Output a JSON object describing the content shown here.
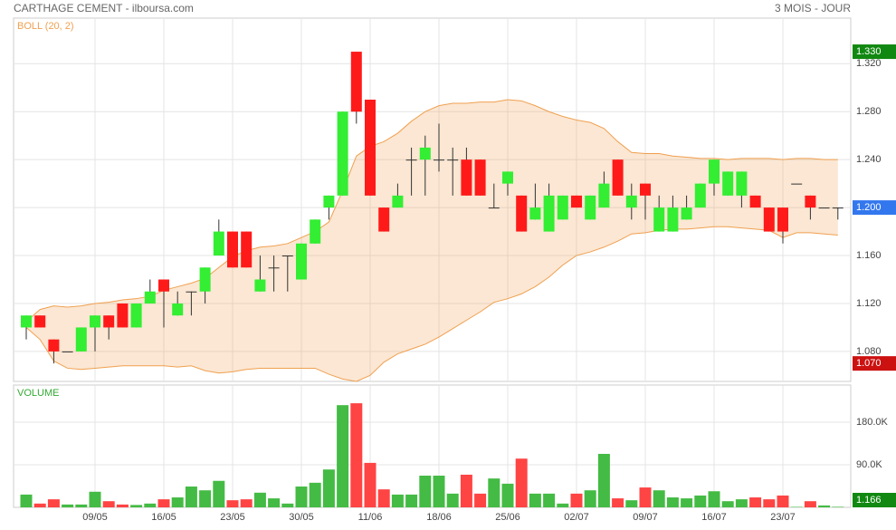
{
  "chart_data": [
    {
      "type": "candlestick",
      "title": "CARTHAGE CEMENT - ilboursa.com",
      "subtitle": "3 MOIS - JOUR",
      "indicator": "BOLL (20, 2)",
      "categories": [
        null,
        null,
        null,
        null,
        null,
        "09/05",
        null,
        null,
        null,
        null,
        "16/05",
        null,
        null,
        null,
        null,
        "23/05",
        null,
        null,
        null,
        null,
        "30/05",
        null,
        null,
        null,
        null,
        "11/06",
        null,
        null,
        null,
        null,
        "18/06",
        null,
        null,
        null,
        null,
        "25/06",
        null,
        null,
        null,
        null,
        "02/07",
        null,
        null,
        null,
        null,
        "09/07",
        null,
        null,
        null,
        null,
        "16/07",
        null,
        null,
        null,
        null,
        "23/07",
        null,
        null,
        null,
        null
      ],
      "open": [
        1.1,
        1.11,
        1.09,
        1.08,
        1.08,
        1.1,
        1.11,
        1.12,
        1.1,
        1.12,
        1.14,
        1.11,
        1.13,
        1.13,
        1.16,
        1.18,
        1.18,
        1.13,
        1.15,
        1.16,
        1.14,
        1.17,
        1.2,
        1.21,
        1.33,
        1.29,
        1.2,
        1.2,
        1.24,
        1.24,
        1.24,
        1.24,
        1.24,
        1.24,
        1.2,
        1.22,
        1.21,
        1.19,
        1.18,
        1.19,
        1.21,
        1.19,
        1.2,
        1.24,
        1.2,
        1.22,
        1.18,
        1.18,
        1.19,
        1.2,
        1.22,
        1.21,
        1.21,
        1.21,
        1.2,
        1.2,
        1.22,
        1.21,
        1.2,
        1.2
      ],
      "high": [
        1.11,
        1.11,
        1.09,
        1.08,
        1.1,
        1.11,
        1.11,
        1.12,
        1.12,
        1.14,
        1.14,
        1.13,
        1.13,
        1.15,
        1.19,
        1.18,
        1.18,
        1.16,
        1.16,
        1.16,
        1.17,
        1.19,
        1.21,
        1.28,
        1.33,
        1.29,
        1.2,
        1.22,
        1.25,
        1.26,
        1.27,
        1.25,
        1.25,
        1.24,
        1.22,
        1.23,
        1.21,
        1.22,
        1.22,
        1.21,
        1.21,
        1.21,
        1.23,
        1.24,
        1.22,
        1.22,
        1.21,
        1.21,
        1.21,
        1.22,
        1.24,
        1.23,
        1.23,
        1.21,
        1.2,
        1.2,
        1.22,
        1.21,
        1.2,
        1.2
      ],
      "low": [
        1.09,
        1.1,
        1.07,
        1.08,
        1.08,
        1.08,
        1.09,
        1.1,
        1.1,
        1.12,
        1.1,
        1.11,
        1.11,
        1.12,
        1.16,
        1.15,
        1.15,
        1.13,
        1.13,
        1.13,
        1.14,
        1.17,
        1.19,
        1.21,
        1.27,
        1.21,
        1.18,
        1.2,
        1.21,
        1.21,
        1.23,
        1.21,
        1.21,
        1.21,
        1.2,
        1.21,
        1.18,
        1.19,
        1.18,
        1.19,
        1.2,
        1.19,
        1.2,
        1.21,
        1.19,
        1.19,
        1.18,
        1.18,
        1.19,
        1.2,
        1.21,
        1.21,
        1.2,
        1.2,
        1.18,
        1.17,
        1.22,
        1.19,
        1.2,
        1.19
      ],
      "close": [
        1.11,
        1.1,
        1.08,
        1.08,
        1.1,
        1.11,
        1.1,
        1.1,
        1.12,
        1.13,
        1.13,
        1.12,
        1.13,
        1.15,
        1.18,
        1.15,
        1.15,
        1.14,
        1.15,
        1.16,
        1.17,
        1.19,
        1.21,
        1.28,
        1.28,
        1.21,
        1.18,
        1.21,
        1.24,
        1.25,
        1.24,
        1.24,
        1.21,
        1.21,
        1.2,
        1.23,
        1.18,
        1.2,
        1.21,
        1.21,
        1.2,
        1.21,
        1.22,
        1.21,
        1.21,
        1.21,
        1.2,
        1.2,
        1.2,
        1.22,
        1.24,
        1.23,
        1.23,
        1.2,
        1.18,
        1.18,
        1.22,
        1.2,
        1.2,
        1.2
      ],
      "band_upper": [
        1.105,
        1.115,
        1.118,
        1.117,
        1.118,
        1.12,
        1.121,
        1.123,
        1.124,
        1.126,
        1.131,
        1.134,
        1.137,
        1.141,
        1.15,
        1.159,
        1.164,
        1.167,
        1.168,
        1.17,
        1.175,
        1.18,
        1.188,
        1.214,
        1.243,
        1.251,
        1.255,
        1.262,
        1.272,
        1.28,
        1.285,
        1.287,
        1.287,
        1.288,
        1.288,
        1.29,
        1.289,
        1.285,
        1.28,
        1.276,
        1.273,
        1.271,
        1.266,
        1.255,
        1.246,
        1.245,
        1.245,
        1.243,
        1.242,
        1.241,
        1.241,
        1.24,
        1.241,
        1.241,
        1.241,
        1.24,
        1.241,
        1.241,
        1.24,
        1.24
      ],
      "band_lower": [
        1.1,
        1.09,
        1.072,
        1.066,
        1.065,
        1.066,
        1.067,
        1.068,
        1.068,
        1.068,
        1.068,
        1.067,
        1.068,
        1.064,
        1.062,
        1.063,
        1.065,
        1.066,
        1.066,
        1.066,
        1.066,
        1.066,
        1.061,
        1.057,
        1.055,
        1.06,
        1.071,
        1.078,
        1.082,
        1.086,
        1.092,
        1.099,
        1.106,
        1.113,
        1.121,
        1.124,
        1.128,
        1.134,
        1.142,
        1.152,
        1.16,
        1.163,
        1.167,
        1.172,
        1.178,
        1.179,
        1.181,
        1.182,
        1.182,
        1.183,
        1.184,
        1.184,
        1.183,
        1.182,
        1.181,
        1.175,
        1.179,
        1.179,
        1.178,
        1.177
      ],
      "ylim": [
        1.055,
        1.358
      ],
      "yticks": [
        {
          "value": 1.08,
          "label": "1.080"
        },
        {
          "value": 1.12,
          "label": "1.120"
        },
        {
          "value": 1.16,
          "label": "1.160"
        },
        {
          "value": 1.2,
          "label": "1.200"
        },
        {
          "value": 1.24,
          "label": "1.240"
        },
        {
          "value": 1.28,
          "label": "1.280"
        },
        {
          "value": 1.32,
          "label": "1.320"
        }
      ],
      "up_color": "#33ee33",
      "down_color": "#ff1a1a",
      "band_color": "#f0a050",
      "grid": true,
      "tags": [
        {
          "value": 1.33,
          "label": "1.330",
          "color": "#118811"
        },
        {
          "value": 1.2,
          "label": "1.200",
          "color": "#3377ee"
        },
        {
          "value": 1.07,
          "label": "1.070",
          "color": "#cc1111"
        }
      ]
    },
    {
      "type": "bar",
      "title": "VOLUME",
      "values": [
        27000,
        8000,
        17000,
        6000,
        6000,
        33000,
        13000,
        6000,
        5000,
        8000,
        17000,
        21000,
        44000,
        36000,
        56000,
        15000,
        17000,
        31000,
        19000,
        8000,
        44000,
        52000,
        80000,
        216000,
        220000,
        94000,
        38000,
        27000,
        27000,
        67000,
        67000,
        29000,
        69000,
        29000,
        61000,
        50000,
        103000,
        29000,
        29000,
        8000,
        29000,
        36000,
        113000,
        19000,
        15000,
        42000,
        36000,
        21000,
        19000,
        25000,
        34000,
        13000,
        17000,
        21000,
        17000,
        25000,
        1000,
        13000,
        4000,
        1166
      ],
      "ylim": [
        0,
        258500
      ],
      "yticks": [
        {
          "value": 90000,
          "label": "90.0K"
        },
        {
          "value": 180000,
          "label": "180.0K"
        }
      ],
      "up_color": "#44bb44",
      "down_color": "#ff4444",
      "grid": true,
      "tags": [
        {
          "value": 1166,
          "label": "1.166",
          "color": "#118811"
        }
      ]
    }
  ]
}
